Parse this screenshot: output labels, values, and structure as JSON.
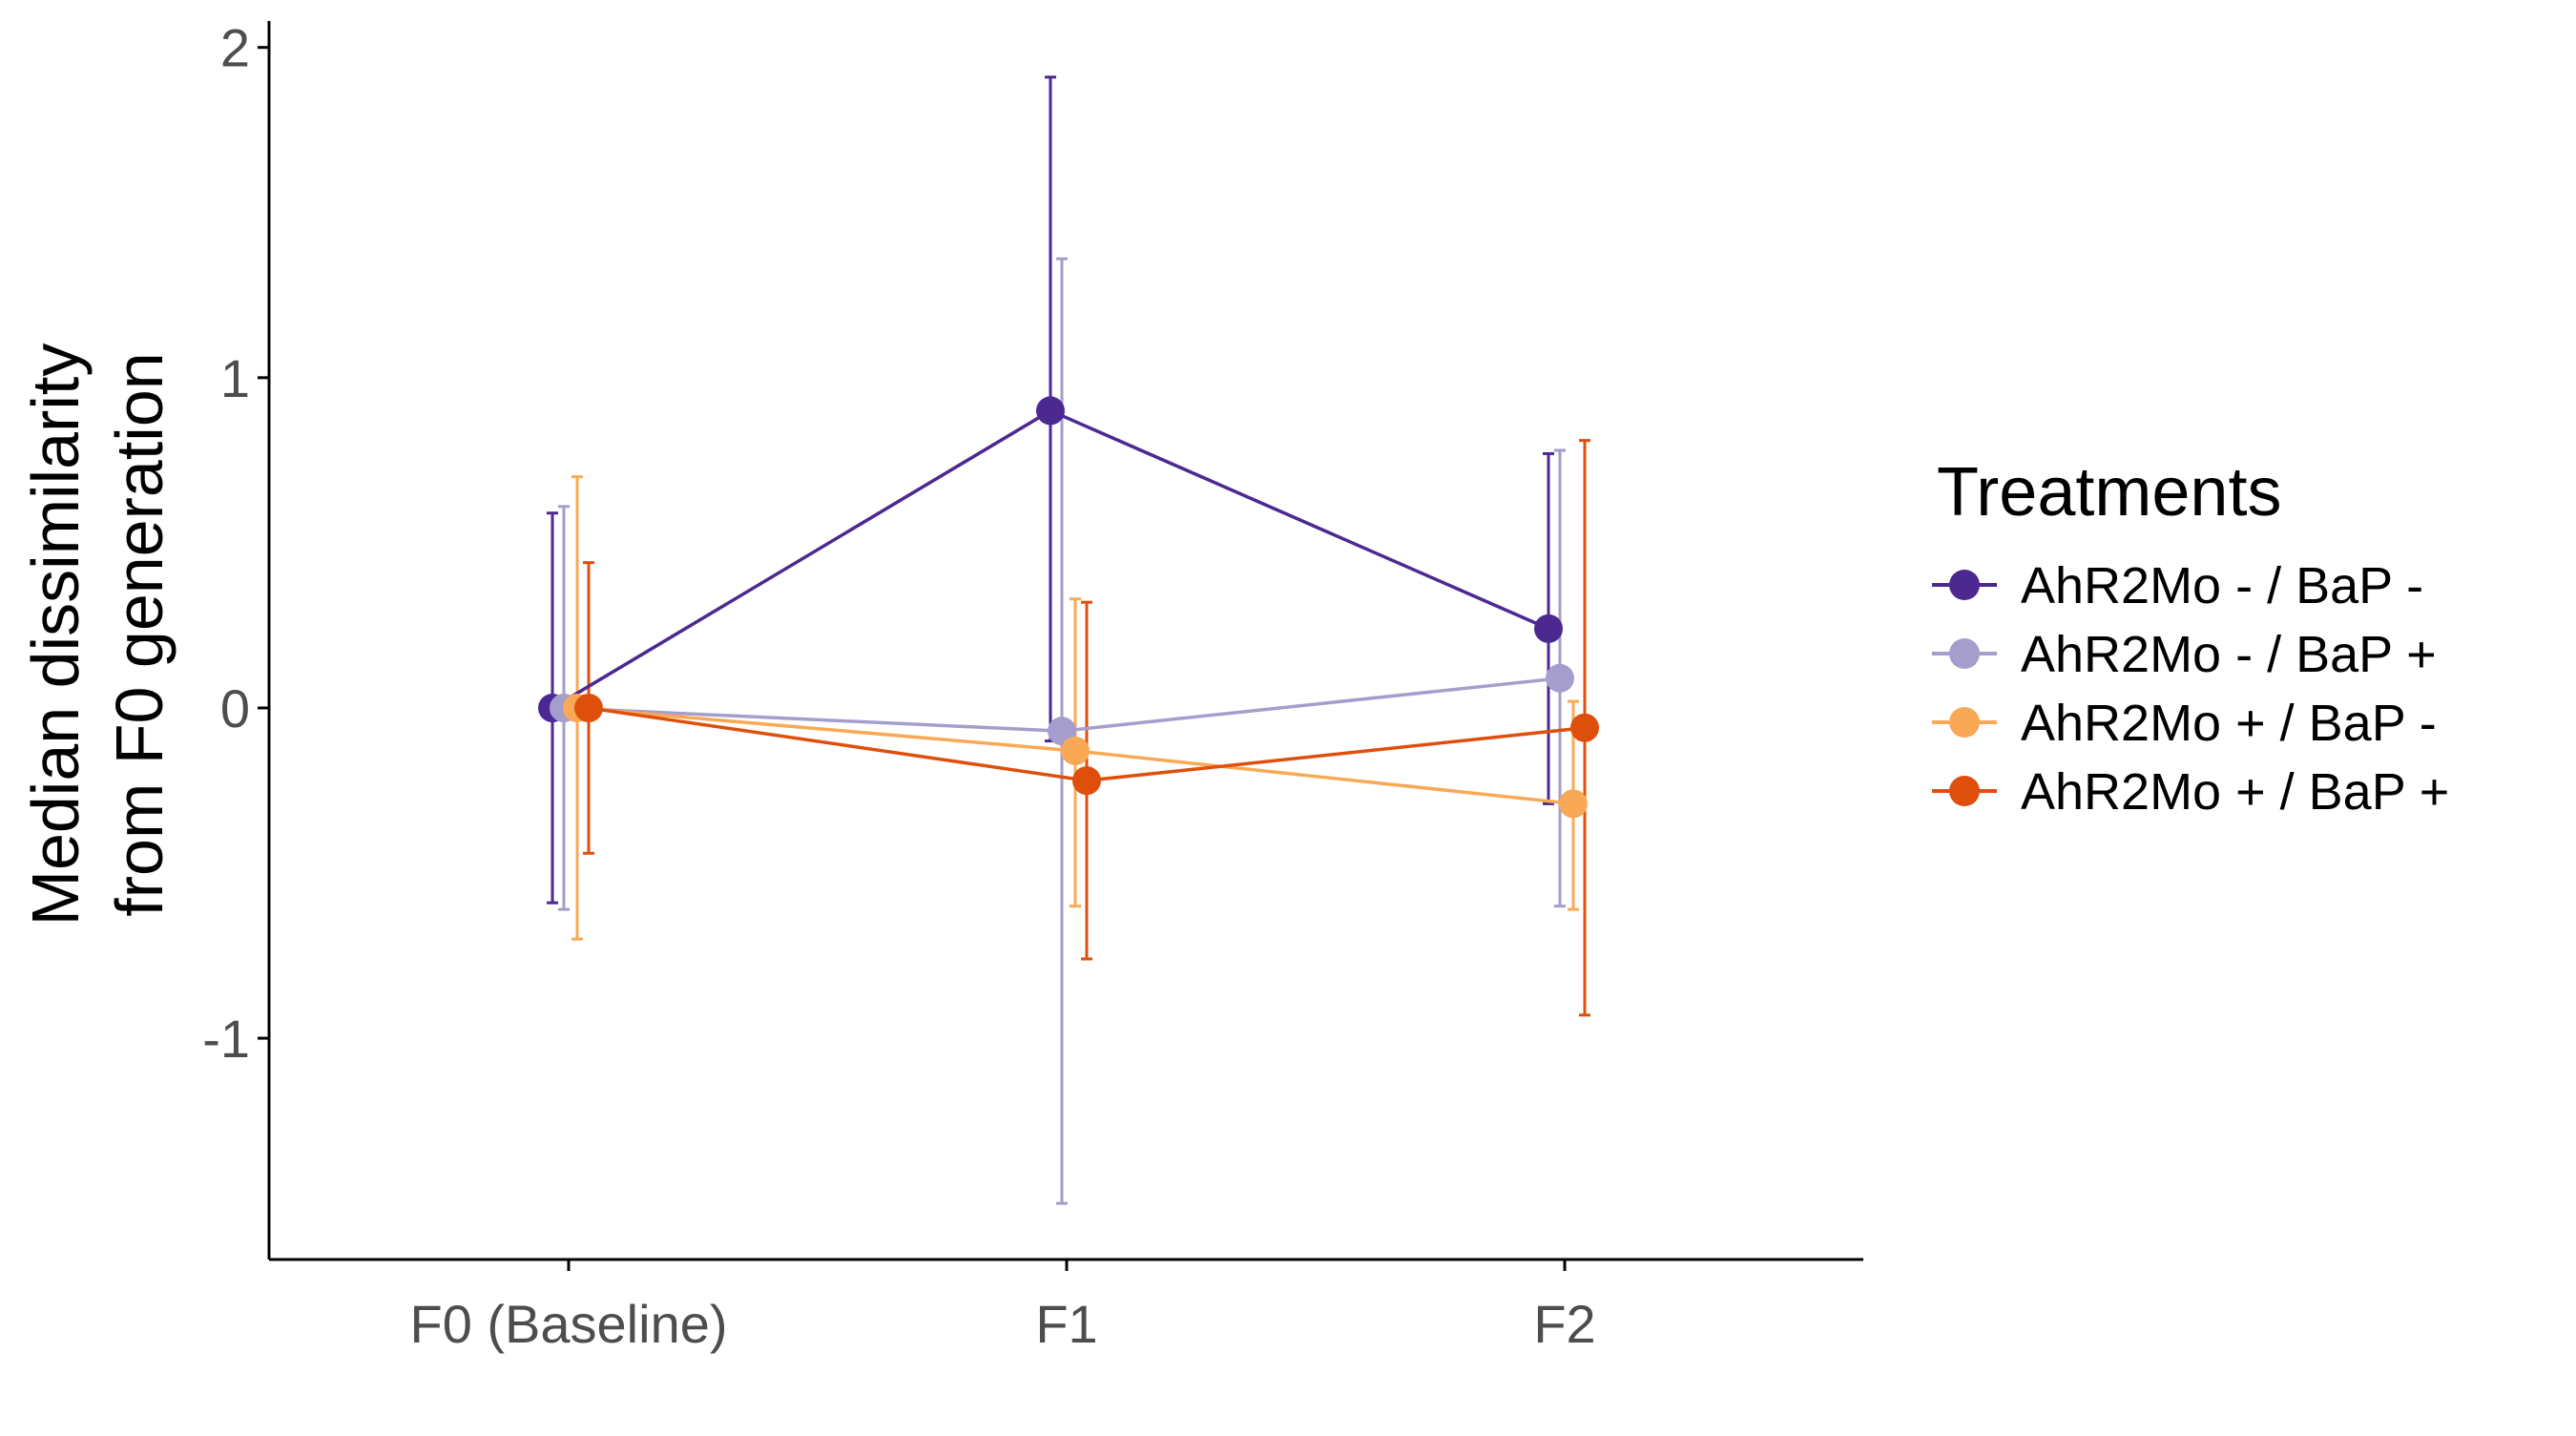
{
  "chart_data": {
    "type": "line",
    "categories": [
      "F0 (Baseline)",
      "F1",
      "F2"
    ],
    "ylabel_lines": [
      "Median dissimilarity",
      "from F0 generation"
    ],
    "xlabel": "",
    "ylim": [
      -1.67,
      2.08
    ],
    "yticks": [
      -1,
      0,
      1,
      2
    ],
    "ytick_labels": [
      "-1",
      "0",
      "1",
      "2"
    ],
    "grid": false,
    "legend": {
      "title": "Treatments",
      "position": "right"
    },
    "series": [
      {
        "name": "AhR2Mo - / BaP -",
        "color": "#4b2991",
        "values": [
          0,
          0.9,
          0.24
        ],
        "lower": [
          -0.59,
          -0.1,
          -0.29
        ],
        "upper": [
          0.59,
          1.91,
          0.77
        ]
      },
      {
        "name": "AhR2Mo - / BaP +",
        "color": "#a59dcb",
        "values": [
          0,
          -0.07,
          0.09
        ],
        "lower": [
          -0.61,
          -1.5,
          -0.6
        ],
        "upper": [
          0.61,
          1.36,
          0.78
        ]
      },
      {
        "name": "AhR2Mo + / BaP -",
        "color": "#f9a955",
        "values": [
          0,
          -0.13,
          -0.29
        ],
        "lower": [
          -0.7,
          -0.6,
          -0.61
        ],
        "upper": [
          0.7,
          0.33,
          0.02
        ]
      },
      {
        "name": "AhR2Mo + / BaP +",
        "color": "#df4f0c",
        "values": [
          0,
          -0.22,
          -0.06
        ],
        "lower": [
          -0.44,
          -0.76,
          -0.93
        ],
        "upper": [
          0.44,
          0.32,
          0.81
        ]
      }
    ]
  }
}
